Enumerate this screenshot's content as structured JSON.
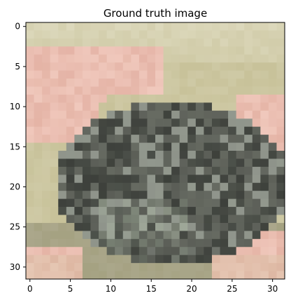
{
  "figure": {
    "title": "Ground truth image"
  },
  "axes": {
    "x_ticks": [
      "0",
      "5",
      "10",
      "15",
      "20",
      "25",
      "30"
    ],
    "y_ticks": [
      "0",
      "5",
      "10",
      "15",
      "20",
      "25",
      "30"
    ],
    "x_range": [
      -0.5,
      31.5
    ],
    "y_range": [
      -0.5,
      31.5
    ],
    "y_inverted": true
  },
  "image": {
    "grid_size": [
      32,
      32
    ],
    "content": "pixelated 32x32 photo: grey-green bumpy frog/toad held in a pink hand on a beige-olive background",
    "palette": {
      "background_olive": "#c8c29a",
      "background_light": "#e6e3cc",
      "skin_pink": "#f0c8bc",
      "skin_shadow": "#d69a8a",
      "frog_dark": "#3d403b",
      "frog_mid": "#5b5e57",
      "frog_light": "#8e938a",
      "frog_highlight": "#aab5a2"
    }
  }
}
